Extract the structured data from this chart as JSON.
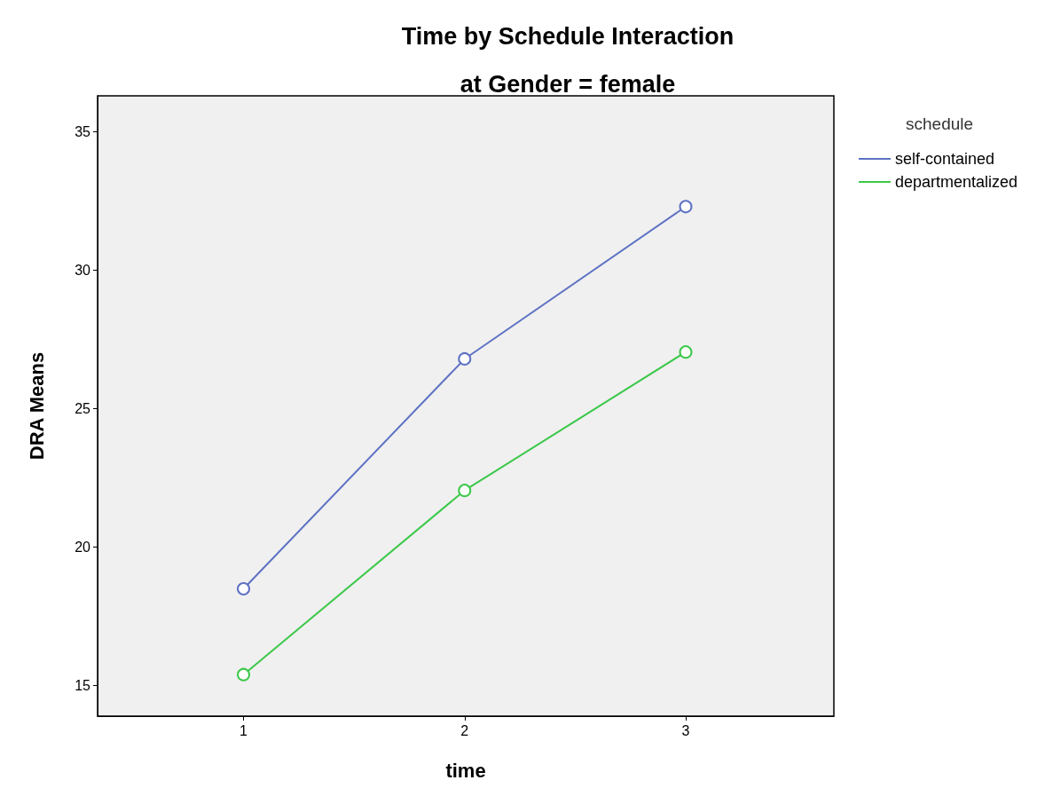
{
  "chart_data": {
    "type": "line",
    "title": "Time by Schedule Interaction",
    "subtitle": "at Gender = female",
    "xlabel": "time",
    "ylabel": "DRA Means",
    "legend_title": "schedule",
    "x": [
      1,
      2,
      3
    ],
    "series": [
      {
        "name": "self-contained",
        "color": "#5e72c4",
        "values": [
          18.5,
          26.8,
          32.3
        ]
      },
      {
        "name": "departmentalized",
        "color": "#3cc84a",
        "values": [
          15.4,
          22.05,
          27.05
        ]
      }
    ],
    "xlim": [
      0.34,
      3.67
    ],
    "xticks": [
      1,
      2,
      3
    ],
    "ylim": [
      13.9,
      36.3
    ],
    "yticks": [
      15,
      20,
      25,
      30,
      35
    ],
    "grid": false,
    "legend": "top right",
    "marker": "circle",
    "line_style": "solid"
  }
}
